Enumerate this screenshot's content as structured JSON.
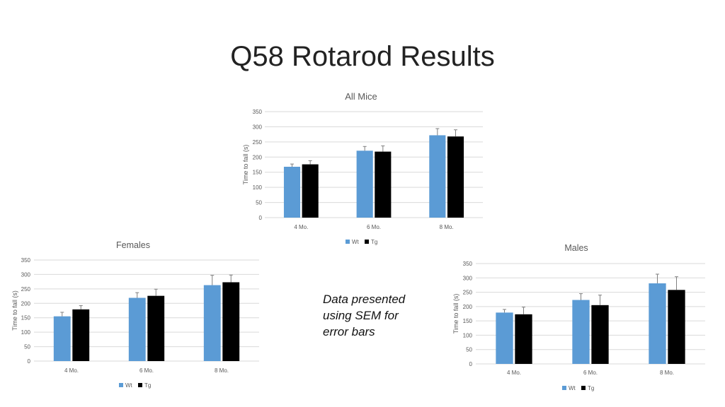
{
  "slide": {
    "title": "Q58 Rotarod Results",
    "note": "Data presented using SEM for error bars"
  },
  "colors": {
    "wt": "#5b9bd5",
    "tg": "#000000",
    "grid": "#d9d9d9",
    "error": "#7f7f7f"
  },
  "chart_data": [
    {
      "type": "bar",
      "title": "All Mice",
      "categories": [
        "4 Mo.",
        "6 Mo.",
        "8 Mo."
      ],
      "ylabel": "Time to fall (s)",
      "ylim": [
        0,
        350
      ],
      "yticks": [
        0,
        50,
        100,
        150,
        200,
        250,
        300,
        350
      ],
      "legend": "bottom",
      "grid": true,
      "series": [
        {
          "name": "Wt",
          "values": [
            168,
            221,
            272
          ],
          "errors": [
            9,
            14,
            22
          ]
        },
        {
          "name": "Tg",
          "values": [
            176,
            218,
            268
          ],
          "errors": [
            12,
            19,
            22
          ]
        }
      ]
    },
    {
      "type": "bar",
      "title": "Females",
      "categories": [
        "4 Mo.",
        "6 Mo.",
        "8 Mo."
      ],
      "ylabel": "Time to fall (s)",
      "ylim": [
        0,
        350
      ],
      "yticks": [
        0,
        50,
        100,
        150,
        200,
        250,
        300,
        350
      ],
      "legend": "bottom",
      "grid": true,
      "series": [
        {
          "name": "Wt",
          "values": [
            155,
            219,
            263
          ],
          "errors": [
            14,
            18,
            34
          ]
        },
        {
          "name": "Tg",
          "values": [
            179,
            226,
            273
          ],
          "errors": [
            13,
            23,
            25
          ]
        }
      ]
    },
    {
      "type": "bar",
      "title": "Males",
      "categories": [
        "4 Mo.",
        "6 Mo.",
        "8 Mo."
      ],
      "ylabel": "Time to fall (s)",
      "ylim": [
        0,
        350
      ],
      "yticks": [
        0,
        50,
        100,
        150,
        200,
        250,
        300,
        350
      ],
      "legend": "bottom",
      "grid": true,
      "series": [
        {
          "name": "Wt",
          "values": [
            179,
            223,
            281
          ],
          "errors": [
            11,
            22,
            32
          ]
        },
        {
          "name": "Tg",
          "values": [
            173,
            205,
            258
          ],
          "errors": [
            25,
            35,
            46
          ]
        }
      ]
    }
  ]
}
